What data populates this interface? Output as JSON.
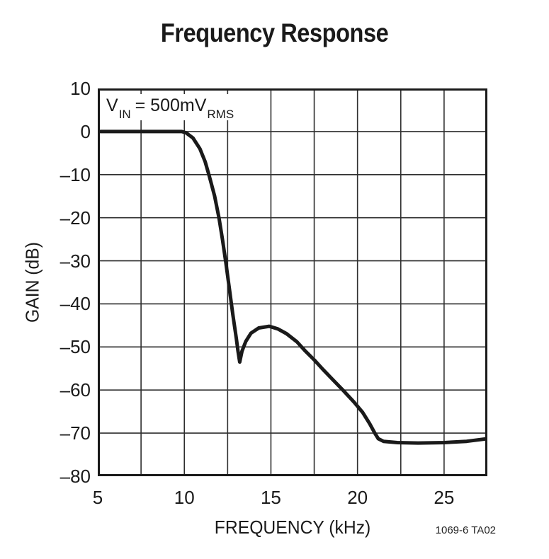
{
  "title": "Frequency Response",
  "figure_id": "1069-6 TA02",
  "annotation": {
    "base": "V",
    "sub_in": "IN",
    "equals": " = 500mV",
    "sub_rms": "RMS"
  },
  "chart_data": {
    "type": "line",
    "title": "Frequency Response",
    "xlabel": "FREQUENCY (kHz)",
    "ylabel": "GAIN (dB)",
    "xlim": [
      5,
      27.5
    ],
    "ylim": [
      -80,
      10
    ],
    "grid": true,
    "x_grid_step": 2.5,
    "y_grid_step": 10,
    "x_major_ticks": [
      5,
      10,
      15,
      20,
      25
    ],
    "x_tick_labels": [
      "5",
      "10",
      "15",
      "20",
      "25"
    ],
    "y_ticks": [
      10,
      0,
      -10,
      -20,
      -30,
      -40,
      -50,
      -60,
      -70,
      -80
    ],
    "y_tick_labels": [
      "10",
      "0",
      "–10",
      "–20",
      "–30",
      "–40",
      "–50",
      "–60",
      "–70",
      "–80"
    ],
    "annotation_text": "VIN = 500mVRMS",
    "line_color": "#1a1a1a",
    "grid_color": "#2e2e2e",
    "border_color": "#1a1a1a",
    "series": [
      {
        "name": "Gain",
        "points": [
          [
            5.0,
            0
          ],
          [
            9.85,
            0
          ],
          [
            10.1,
            -0.3
          ],
          [
            10.5,
            -1.5
          ],
          [
            10.9,
            -4
          ],
          [
            11.2,
            -7
          ],
          [
            11.45,
            -10.5
          ],
          [
            11.75,
            -15
          ],
          [
            12.0,
            -20
          ],
          [
            12.2,
            -25
          ],
          [
            12.4,
            -30.5
          ],
          [
            12.6,
            -36.5
          ],
          [
            12.8,
            -42.5
          ],
          [
            13.0,
            -48
          ],
          [
            13.1,
            -51
          ],
          [
            13.2,
            -53.5
          ],
          [
            13.33,
            -51
          ],
          [
            13.55,
            -48.7
          ],
          [
            13.85,
            -46.8
          ],
          [
            14.3,
            -45.6
          ],
          [
            14.9,
            -45.2
          ],
          [
            15.4,
            -45.8
          ],
          [
            15.9,
            -46.9
          ],
          [
            16.5,
            -48.8
          ],
          [
            17.0,
            -51
          ],
          [
            17.5,
            -53
          ],
          [
            18.0,
            -55.2
          ],
          [
            18.6,
            -57.7
          ],
          [
            19.2,
            -60.2
          ],
          [
            19.8,
            -62.8
          ],
          [
            20.3,
            -65.2
          ],
          [
            20.7,
            -67.8
          ],
          [
            21.0,
            -70
          ],
          [
            21.2,
            -71.3
          ],
          [
            21.5,
            -71.9
          ],
          [
            22.3,
            -72.2
          ],
          [
            23.5,
            -72.3
          ],
          [
            25.0,
            -72.2
          ],
          [
            26.3,
            -71.9
          ],
          [
            27.5,
            -71.3
          ]
        ]
      }
    ]
  }
}
